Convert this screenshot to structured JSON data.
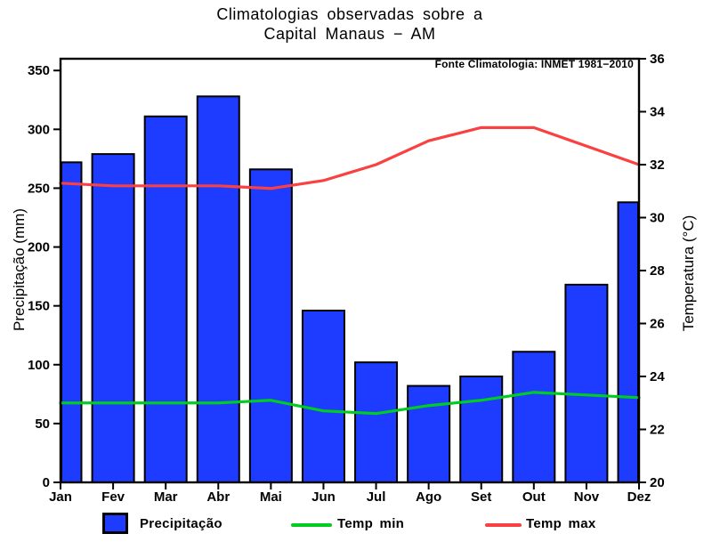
{
  "chart_data": {
    "type": "bar+line",
    "title_line1": "Climatologias observadas sobre a",
    "title_line2": "Capital Manaus − AM",
    "annotation": "Fonte Climatologia: INMET 1981−2010",
    "categories": [
      "Jan",
      "Fev",
      "Mar",
      "Abr",
      "Mai",
      "Jun",
      "Jul",
      "Ago",
      "Set",
      "Out",
      "Nov",
      "Dez"
    ],
    "series": [
      {
        "name": "Precipitação",
        "type": "bar",
        "axis": "left",
        "color": "#1E3CFF",
        "values": [
          272,
          279,
          311,
          328,
          266,
          146,
          102,
          82,
          90,
          111,
          168,
          238
        ]
      },
      {
        "name": "Temp min",
        "type": "line",
        "axis": "right",
        "color": "#00CC22",
        "values": [
          23.0,
          23.0,
          23.0,
          23.0,
          23.1,
          22.7,
          22.6,
          22.9,
          23.1,
          23.4,
          23.3,
          23.2
        ]
      },
      {
        "name": "Temp max",
        "type": "line",
        "axis": "right",
        "color": "#FA4040",
        "values": [
          31.3,
          31.2,
          31.2,
          31.2,
          31.1,
          31.4,
          32.0,
          32.9,
          33.4,
          33.4,
          32.7,
          32.0
        ]
      }
    ],
    "yleft": {
      "label": "Precipitação (mm)",
      "min": 0,
      "max": 360,
      "ticks": [
        0,
        50,
        100,
        150,
        200,
        250,
        300,
        350
      ]
    },
    "yright": {
      "label": "Temperatura (°C)",
      "min": 20,
      "max": 36,
      "ticks": [
        20,
        22,
        24,
        26,
        28,
        30,
        32,
        34,
        36
      ]
    },
    "legend_position": "bottom",
    "grid": false,
    "axis_color": "#000000",
    "background_color": "#ffffff"
  }
}
